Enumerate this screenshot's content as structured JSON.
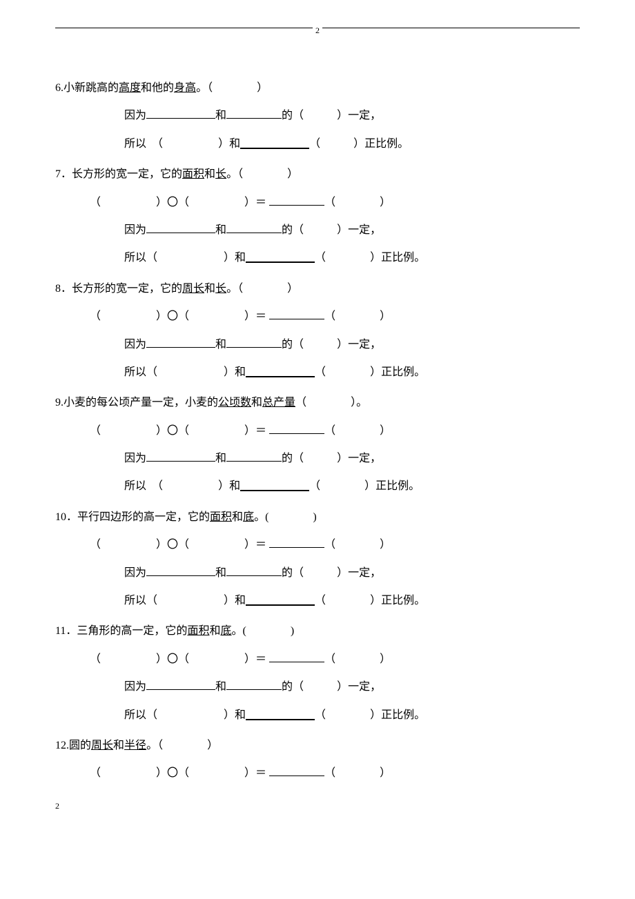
{
  "page": {
    "header_page_number": "2",
    "footer_page_number": "2"
  },
  "labels": {
    "because": "因为",
    "and": "和",
    "of": "的（",
    "fixed_close": "）一定，",
    "so": "所以",
    "and2": "）和",
    "prop_close": "）正比例。",
    "open_paren_wide": "（",
    "close_paren_wide": "）",
    "open_paren": "（　　　　）",
    "eq": "＝",
    "circle": "〇",
    "open_p_small": "（　　）",
    "open_p_med": "（　　　　　）",
    "open_paren_half": "(",
    "close_paren_half": ")",
    "period": "。"
  },
  "q6": {
    "num": "6.",
    "prefix": "小新跳高的",
    "u1": "高度",
    "mid": "和他的",
    "u2": "身高",
    "tail": "。（　　　　）"
  },
  "q7": {
    "num": "7．",
    "prefix": "长方形的宽一定，它的",
    "u1": "面积",
    "mid": "和",
    "u2": "长",
    "tail": "。（　　　　）"
  },
  "q8": {
    "num": "8．",
    "prefix": "长方形的宽一定，它的",
    "u1": "周长",
    "mid": "和",
    "u2": "长",
    "tail": "。（　　　　）"
  },
  "q9": {
    "num": "9.",
    "prefix": "小麦的每公顷产量一定，小麦的",
    "u1": "公顷数",
    "mid": "和",
    "u2": "总产量",
    "tail": "（　　　　）。"
  },
  "q10": {
    "num": "10．",
    "prefix": "平行四边形的高一定，它的",
    "u1": "面积",
    "mid": "和",
    "u2": "底",
    "tail": "。(　　　　)"
  },
  "q11": {
    "num": "11．",
    "prefix": "三角形的高一定，它的",
    "u1": "面积",
    "mid": "和",
    "u2": "底",
    "tail": "。(　　　　)"
  },
  "q12": {
    "num": "12.",
    "prefix": "圆的",
    "u1": "周长",
    "mid": "和",
    "u2": "半径",
    "tail": "。（　　　　）"
  }
}
